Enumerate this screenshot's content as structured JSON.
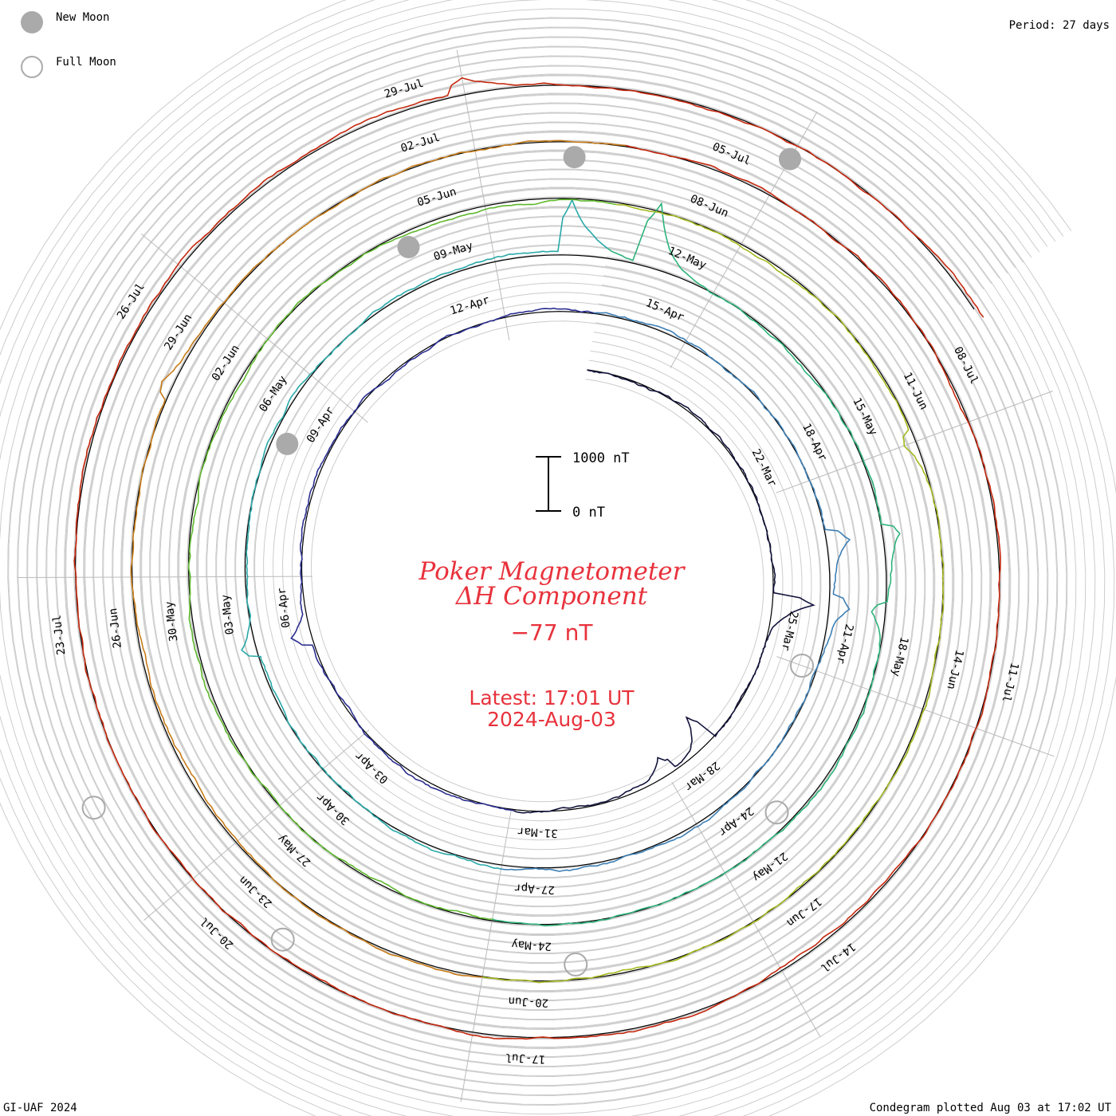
{
  "header": {
    "period": "Period: 27 days"
  },
  "legend": {
    "new_moon": "New Moon",
    "full_moon": "Full Moon",
    "new_moon_color": "#aaaaaa",
    "full_moon_color": "#aaaaaa"
  },
  "footer": {
    "credit": "GI-UAF 2024",
    "plotted": "Condegram plotted Aug 03 at 17:02 UT"
  },
  "center": {
    "title_line1": "Poker Magnetometer",
    "title_line2": "ΔH Component",
    "current_value": "−77 nT",
    "latest": "Latest: 17:01 UT",
    "date": "2024-Aug-03",
    "text_color": "#e8323c"
  },
  "scale_bar": {
    "top_label": "1000 nT",
    "bottom_label": "0 nT"
  },
  "chart_data": {
    "type": "line",
    "subtype": "spiral condegram",
    "period_days": 27,
    "units": "nT",
    "start_date": "2024-03-18",
    "end_date": "2024-08-03",
    "date_labels": [
      "22-Mar",
      "25-Mar",
      "28-Mar",
      "31-Mar",
      "03-Apr",
      "06-Apr",
      "09-Apr",
      "12-Apr",
      "15-Apr",
      "18-Apr",
      "21-Apr",
      "24-Apr",
      "27-Apr",
      "30-Apr",
      "03-May",
      "06-May",
      "09-May",
      "12-May",
      "15-May",
      "18-May",
      "21-May",
      "24-May",
      "27-May",
      "30-May",
      "02-Jun",
      "05-Jun",
      "08-Jun",
      "11-Jun",
      "14-Jun",
      "17-Jun",
      "20-Jun",
      "23-Jun",
      "26-Jun",
      "29-Jun",
      "02-Jul",
      "05-Jul",
      "08-Jul",
      "11-Jul",
      "14-Jul",
      "17-Jul",
      "20-Jul",
      "23-Jul",
      "26-Jul",
      "29-Jul"
    ],
    "new_moon_dates": [
      "2024-04-08",
      "2024-05-08",
      "2024-06-06",
      "2024-07-05"
    ],
    "full_moon_dates": [
      "2024-03-25",
      "2024-04-23",
      "2024-05-23",
      "2024-06-22",
      "2024-07-21"
    ],
    "series_colors": [
      "#14143c",
      "#2b2f8f",
      "#3d7fb5",
      "#2aa8a8",
      "#2db37a",
      "#5fb82e",
      "#a4b81e",
      "#c87d1a",
      "#c4280e"
    ],
    "events": [
      {
        "date": "2024-03-24",
        "value": -700
      },
      {
        "date": "2024-03-27",
        "value": 600
      },
      {
        "date": "2024-03-28",
        "value": 350
      },
      {
        "date": "2024-04-05",
        "value": -300
      },
      {
        "date": "2024-04-19",
        "value": -380
      },
      {
        "date": "2024-04-20",
        "value": -350
      },
      {
        "date": "2024-05-02",
        "value": -300
      },
      {
        "date": "2024-05-10",
        "value": -900
      },
      {
        "date": "2024-05-11",
        "value": -1100
      },
      {
        "date": "2024-05-16",
        "value": -300
      },
      {
        "date": "2024-05-17",
        "value": 230
      },
      {
        "date": "2024-06-11",
        "value": 200
      },
      {
        "date": "2024-06-28",
        "value": -180
      },
      {
        "date": "2024-07-29",
        "value": -250
      }
    ]
  }
}
